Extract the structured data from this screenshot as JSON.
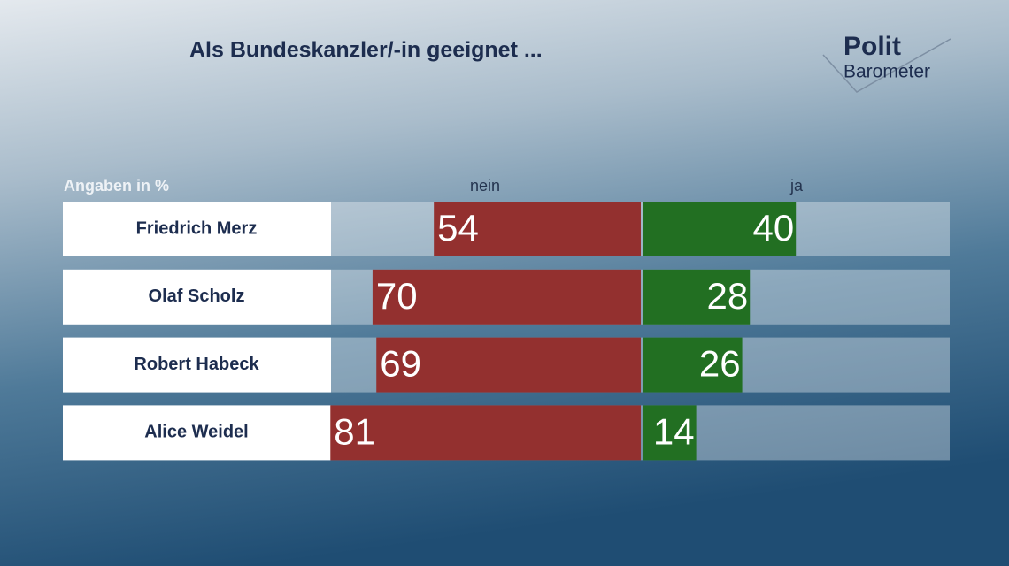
{
  "chart_data": {
    "type": "bar",
    "title": "Als Bundeskanzler/-in geeignet ...",
    "unit_note": "Angaben in %",
    "logo": [
      "Polit",
      "Barometer"
    ],
    "categories": [
      "Friedrich Merz",
      "Olaf Scholz",
      "Robert Habeck",
      "Alice Weidel"
    ],
    "series": [
      {
        "name": "nein",
        "color": "#93302f",
        "values": [
          54,
          70,
          69,
          81
        ]
      },
      {
        "name": "ja",
        "color": "#226f22",
        "values": [
          40,
          28,
          26,
          14
        ]
      }
    ]
  }
}
